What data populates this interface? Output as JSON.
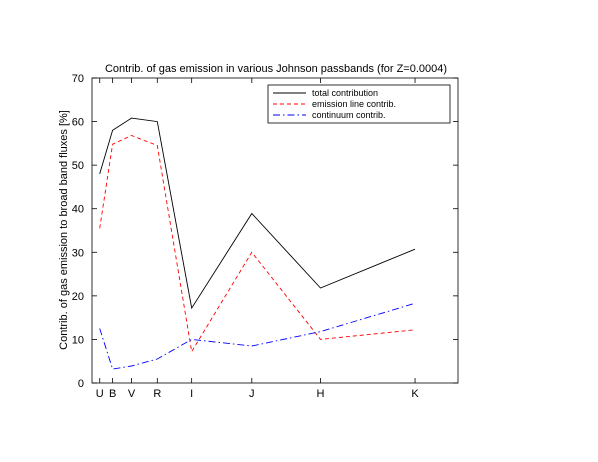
{
  "chart_data": {
    "type": "line",
    "title": "Contrib. of gas emission in various Johnson passbands (for Z=0.0004)",
    "xlabel": "",
    "ylabel": "Contrib. of gas emission to broad band fluxes [%]",
    "ylim": [
      0,
      70
    ],
    "yticks": [
      0,
      10,
      20,
      30,
      40,
      50,
      60,
      70
    ],
    "categories": [
      "U",
      "B",
      "V",
      "R",
      "I",
      "J",
      "H",
      "K"
    ],
    "x": [
      0.365,
      0.44,
      0.55,
      0.7,
      0.9,
      1.25,
      1.65,
      2.2
    ],
    "xlim": [
      0.32,
      2.45
    ],
    "grid": false,
    "legend_position": "top-right",
    "series": [
      {
        "name": "total contribution",
        "color": "#000000",
        "dash": "solid",
        "points": [
          [
            0.365,
            48
          ],
          [
            0.44,
            58
          ],
          [
            0.55,
            60.8
          ],
          [
            0.7,
            60
          ],
          [
            0.9,
            17.2
          ],
          [
            1.25,
            38.9
          ],
          [
            1.65,
            21.8
          ],
          [
            2.2,
            30.7
          ]
        ]
      },
      {
        "name": "emission line contrib.",
        "color": "#ff0000",
        "dash": "dashed",
        "points": [
          [
            0.365,
            35.5
          ],
          [
            0.44,
            54.8
          ],
          [
            0.55,
            56.8
          ],
          [
            0.7,
            54.5
          ],
          [
            0.9,
            7.2
          ],
          [
            1.25,
            30
          ],
          [
            1.65,
            10
          ],
          [
            2.2,
            12.2
          ]
        ]
      },
      {
        "name": "continuum contrib.",
        "color": "#0000ff",
        "dash": "dashdot",
        "points": [
          [
            0.365,
            12.5
          ],
          [
            0.44,
            3.2
          ],
          [
            0.55,
            3.9
          ],
          [
            0.7,
            5.5
          ],
          [
            0.9,
            10
          ],
          [
            1.25,
            8.5
          ],
          [
            1.65,
            11.8
          ],
          [
            2.2,
            18.3
          ]
        ]
      }
    ]
  }
}
